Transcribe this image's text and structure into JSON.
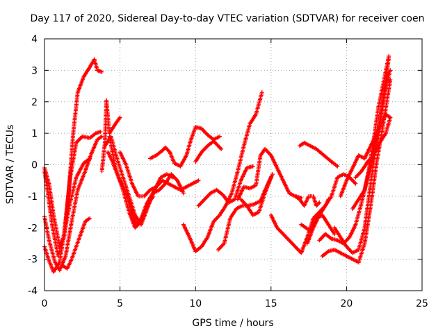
{
  "chart_data": {
    "type": "scatter",
    "title": "Day 117 of 2020, Sidereal Day-to-day VTEC variation (SDTVAR) for receiver coen",
    "xlabel": "GPS time / hours",
    "ylabel": "SDTVAR / TECUs",
    "xlim": [
      0,
      25
    ],
    "ylim": [
      -4,
      4
    ],
    "xticks": [
      0,
      5,
      10,
      15,
      20,
      25
    ],
    "yticks": [
      -4,
      -3,
      -2,
      -1,
      0,
      1,
      2,
      3,
      4
    ],
    "grid": true,
    "marker": "+",
    "color": "#ff0000",
    "series": [
      {
        "x": [
          0.0,
          0.3,
          0.6,
          1.0,
          1.3,
          1.6,
          1.9,
          2.2,
          2.6,
          3.0,
          3.3,
          3.5,
          3.8
        ],
        "y": [
          -0.1,
          -0.6,
          -1.6,
          -2.6,
          -2.3,
          -0.9,
          1.0,
          2.3,
          2.8,
          3.1,
          3.35,
          3.0,
          2.95
        ]
      },
      {
        "x": [
          0.0,
          0.2,
          0.5,
          0.9,
          1.3,
          1.7,
          2.1,
          2.5,
          3.0,
          3.4,
          3.7
        ],
        "y": [
          -0.2,
          -0.8,
          -1.9,
          -2.9,
          -2.2,
          -0.4,
          0.7,
          0.9,
          0.85,
          1.0,
          1.05
        ]
      },
      {
        "x": [
          0.0,
          0.3,
          0.7,
          1.0,
          1.4,
          1.8,
          2.2,
          2.7,
          3.1,
          3.5,
          3.8
        ],
        "y": [
          -1.65,
          -2.4,
          -3.1,
          -3.35,
          -2.9,
          -1.8,
          -0.8,
          -0.2,
          0.35,
          0.8,
          0.9
        ]
      },
      {
        "x": [
          0.0,
          0.3,
          0.6,
          1.0,
          1.3,
          1.7,
          2.1,
          2.6,
          3.0
        ],
        "y": [
          -2.6,
          -3.05,
          -3.4,
          -3.1,
          -2.2,
          -1.2,
          -0.4,
          0.05,
          0.2
        ]
      },
      {
        "x": [
          1.2,
          1.5,
          1.8,
          2.1,
          2.4,
          2.7,
          3.0
        ],
        "y": [
          -3.2,
          -3.3,
          -3.0,
          -2.6,
          -2.2,
          -1.8,
          -1.7
        ]
      },
      {
        "x": [
          3.8,
          4.0,
          4.1,
          4.3,
          4.7,
          5.0
        ],
        "y": [
          -0.2,
          0.7,
          2.05,
          1.0,
          1.3,
          1.5
        ]
      },
      {
        "x": [
          4.0,
          4.4,
          4.8,
          5.2,
          5.6,
          6.0,
          6.4,
          6.8,
          7.2,
          7.6,
          8.0,
          8.4,
          8.8,
          9.2
        ],
        "y": [
          0.6,
          0.9,
          0.2,
          -0.4,
          -1.0,
          -1.6,
          -1.9,
          -1.4,
          -0.9,
          -0.8,
          -0.6,
          -0.3,
          -0.5,
          -0.9
        ]
      },
      {
        "x": [
          4.2,
          4.5,
          4.9,
          5.3,
          5.7,
          6.1,
          6.4,
          6.8,
          7.3,
          7.7,
          8.1,
          8.5
        ],
        "y": [
          0.4,
          0.1,
          -0.4,
          -0.8,
          -1.4,
          -1.9,
          -1.7,
          -1.2,
          -0.8,
          -0.4,
          -0.3,
          -0.4
        ]
      },
      {
        "x": [
          4.3,
          4.7,
          5.2,
          5.6,
          6.0,
          6.4,
          6.8,
          7.2
        ],
        "y": [
          0.9,
          -0.1,
          -0.8,
          -1.5,
          -2.0,
          -1.8,
          -1.3,
          -1.0
        ]
      },
      {
        "x": [
          5.0,
          5.4,
          5.8,
          6.2,
          6.6,
          7.0,
          7.4,
          7.8,
          8.2,
          8.6,
          9.0,
          9.4,
          9.8,
          10.2
        ],
        "y": [
          0.4,
          0.0,
          -0.6,
          -1.0,
          -1.0,
          -0.8,
          -0.7,
          -0.5,
          -0.6,
          -0.7,
          -0.8,
          -0.7,
          -0.6,
          -0.5
        ]
      },
      {
        "x": [
          7.0,
          7.4,
          7.8,
          8.0,
          8.3,
          8.6,
          9.0,
          9.4,
          9.7,
          10.0,
          10.4,
          10.8,
          11.2,
          11.6
        ],
        "y": [
          0.2,
          0.3,
          0.45,
          0.55,
          0.4,
          0.05,
          -0.05,
          0.3,
          0.8,
          1.2,
          1.15,
          0.95,
          0.8,
          0.9
        ]
      },
      {
        "x": [
          9.2,
          9.6,
          10.0,
          10.4,
          10.8,
          11.2,
          11.6,
          12.0,
          12.4,
          12.8,
          13.2,
          13.6,
          14.0,
          14.4
        ],
        "y": [
          -1.9,
          -2.3,
          -2.75,
          -2.6,
          -2.3,
          -1.8,
          -1.6,
          -1.3,
          -0.9,
          -0.2,
          0.6,
          1.3,
          1.6,
          2.3
        ]
      },
      {
        "x": [
          10.2,
          10.6,
          11.0,
          11.4,
          11.8,
          12.2,
          12.6,
          13.0,
          13.4,
          13.8
        ],
        "y": [
          -1.3,
          -1.1,
          -0.9,
          -0.8,
          -0.95,
          -1.2,
          -1.1,
          -0.5,
          -0.1,
          -0.05
        ]
      },
      {
        "x": [
          10.0,
          10.4,
          10.8,
          11.2,
          11.5,
          11.7
        ],
        "y": [
          0.1,
          0.4,
          0.6,
          0.75,
          0.6,
          0.5
        ]
      },
      {
        "x": [
          11.5,
          11.9,
          12.3,
          12.7,
          13.1,
          13.5,
          13.9,
          14.3,
          14.7,
          15.1
        ],
        "y": [
          -2.7,
          -2.5,
          -1.7,
          -1.4,
          -1.3,
          -1.3,
          -1.25,
          -1.15,
          -0.7,
          -0.3
        ]
      },
      {
        "x": [
          12.8,
          13.2,
          13.6,
          14.0,
          14.3,
          14.6,
          15.0,
          15.4,
          15.8,
          16.2,
          16.6,
          17.0
        ],
        "y": [
          -1.1,
          -0.7,
          -0.75,
          -0.65,
          0.3,
          0.5,
          0.3,
          -0.1,
          -0.5,
          -0.9,
          -1.0,
          -1.05
        ]
      },
      {
        "x": [
          13.0,
          13.4,
          13.8,
          14.2,
          14.6,
          15.0
        ],
        "y": [
          -1.1,
          -1.3,
          -1.6,
          -1.5,
          -0.9,
          -0.4
        ]
      },
      {
        "x": [
          15.0,
          15.4,
          15.8,
          16.2,
          16.6,
          17.0,
          17.4,
          17.8,
          18.2,
          18.6,
          18.8
        ],
        "y": [
          -1.6,
          -2.0,
          -2.2,
          -2.4,
          -2.6,
          -2.8,
          -2.3,
          -1.7,
          -1.5,
          -1.3,
          -1.1
        ]
      },
      {
        "x": [
          16.6,
          16.9,
          17.2,
          17.5,
          17.8,
          18.0,
          18.2
        ],
        "y": [
          -1.0,
          -1.1,
          -1.3,
          -1.0,
          -1.0,
          -1.3,
          -1.2
        ]
      },
      {
        "x": [
          16.9,
          17.2,
          17.6,
          18.0,
          18.5,
          19.0,
          19.4
        ],
        "y": [
          0.6,
          0.7,
          0.6,
          0.5,
          0.3,
          0.1,
          -0.05
        ]
      },
      {
        "x": [
          17.0,
          17.3,
          17.6,
          18.0,
          18.4,
          18.8,
          19.2
        ],
        "y": [
          -1.9,
          -2.0,
          -2.1,
          -1.7,
          -1.6,
          -1.9,
          -2.2
        ]
      },
      {
        "x": [
          17.4,
          17.8,
          18.2,
          18.6,
          19.0,
          19.4,
          19.8,
          20.2,
          20.6
        ],
        "y": [
          -2.5,
          -2.0,
          -1.6,
          -1.3,
          -1.0,
          -0.4,
          -0.3,
          -0.4,
          -0.6
        ]
      },
      {
        "x": [
          18.2,
          18.6,
          19.0,
          19.4,
          19.8,
          20.2,
          20.6,
          21.0,
          21.4,
          21.8,
          22.2,
          22.6,
          22.9
        ],
        "y": [
          -2.4,
          -2.2,
          -2.35,
          -2.4,
          -2.5,
          -2.3,
          -1.9,
          -1.2,
          -0.4,
          0.4,
          1.3,
          2.5,
          3.0
        ]
      },
      {
        "x": [
          18.4,
          18.8,
          19.2,
          19.6,
          20.0,
          20.4,
          20.8,
          21.2,
          21.6,
          22.0,
          22.4,
          22.9
        ],
        "y": [
          -2.9,
          -2.75,
          -2.7,
          -2.8,
          -2.9,
          -3.0,
          -3.1,
          -2.5,
          -1.3,
          0.1,
          1.2,
          2.7
        ]
      },
      {
        "x": [
          19.2,
          19.6,
          20.0,
          20.4,
          20.8,
          21.2,
          21.6,
          22.0,
          22.4,
          22.8
        ],
        "y": [
          -2.0,
          -2.3,
          -2.6,
          -2.8,
          -2.7,
          -2.0,
          -0.6,
          0.8,
          2.0,
          3.4
        ]
      },
      {
        "x": [
          19.6,
          20.0,
          20.4,
          20.8,
          21.2,
          21.6,
          22.0,
          22.3,
          22.6,
          22.9
        ],
        "y": [
          -1.0,
          -0.5,
          -0.1,
          0.3,
          0.2,
          0.6,
          1.0,
          1.3,
          1.6,
          1.5
        ]
      },
      {
        "x": [
          20.4,
          20.8,
          21.2,
          21.5,
          21.8,
          22.1,
          22.4,
          22.8
        ],
        "y": [
          -1.4,
          -1.1,
          -0.8,
          -0.1,
          0.8,
          1.8,
          2.5,
          3.45
        ]
      },
      {
        "x": [
          20.6,
          21.0,
          21.4,
          21.8,
          22.2,
          22.6,
          22.9
        ],
        "y": [
          -0.4,
          -0.2,
          0.1,
          0.3,
          0.7,
          1.0,
          1.5
        ]
      }
    ]
  }
}
